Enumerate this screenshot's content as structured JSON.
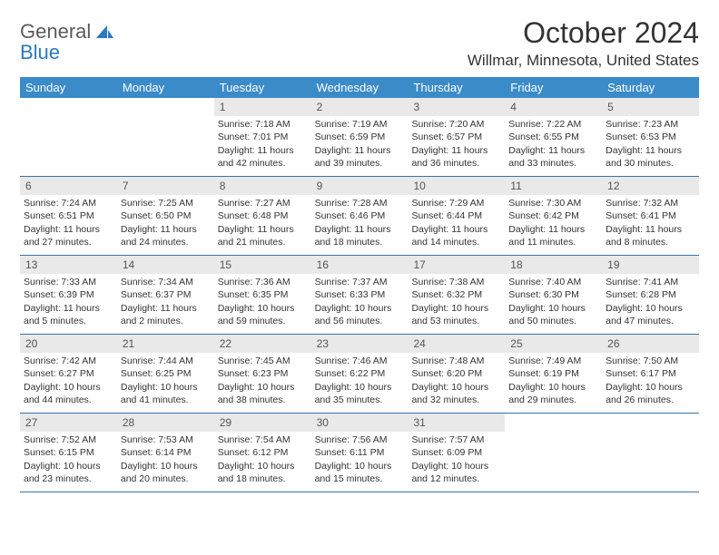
{
  "logo": {
    "line1": "General",
    "line2": "Blue"
  },
  "title": "October 2024",
  "location": "Willmar, Minnesota, United States",
  "colors": {
    "header_bg": "#3b8bc9",
    "header_text": "#ffffff",
    "daynum_bg": "#e9e9e9",
    "rule": "#3b74a8",
    "logo_gray": "#5a5a5a",
    "logo_blue": "#2a7ac0",
    "body_text": "#333333"
  },
  "dow": [
    "Sunday",
    "Monday",
    "Tuesday",
    "Wednesday",
    "Thursday",
    "Friday",
    "Saturday"
  ],
  "weeks": [
    [
      {
        "n": "",
        "lines": []
      },
      {
        "n": "",
        "lines": []
      },
      {
        "n": "1",
        "lines": [
          "Sunrise: 7:18 AM",
          "Sunset: 7:01 PM",
          "Daylight: 11 hours and 42 minutes."
        ]
      },
      {
        "n": "2",
        "lines": [
          "Sunrise: 7:19 AM",
          "Sunset: 6:59 PM",
          "Daylight: 11 hours and 39 minutes."
        ]
      },
      {
        "n": "3",
        "lines": [
          "Sunrise: 7:20 AM",
          "Sunset: 6:57 PM",
          "Daylight: 11 hours and 36 minutes."
        ]
      },
      {
        "n": "4",
        "lines": [
          "Sunrise: 7:22 AM",
          "Sunset: 6:55 PM",
          "Daylight: 11 hours and 33 minutes."
        ]
      },
      {
        "n": "5",
        "lines": [
          "Sunrise: 7:23 AM",
          "Sunset: 6:53 PM",
          "Daylight: 11 hours and 30 minutes."
        ]
      }
    ],
    [
      {
        "n": "6",
        "lines": [
          "Sunrise: 7:24 AM",
          "Sunset: 6:51 PM",
          "Daylight: 11 hours and 27 minutes."
        ]
      },
      {
        "n": "7",
        "lines": [
          "Sunrise: 7:25 AM",
          "Sunset: 6:50 PM",
          "Daylight: 11 hours and 24 minutes."
        ]
      },
      {
        "n": "8",
        "lines": [
          "Sunrise: 7:27 AM",
          "Sunset: 6:48 PM",
          "Daylight: 11 hours and 21 minutes."
        ]
      },
      {
        "n": "9",
        "lines": [
          "Sunrise: 7:28 AM",
          "Sunset: 6:46 PM",
          "Daylight: 11 hours and 18 minutes."
        ]
      },
      {
        "n": "10",
        "lines": [
          "Sunrise: 7:29 AM",
          "Sunset: 6:44 PM",
          "Daylight: 11 hours and 14 minutes."
        ]
      },
      {
        "n": "11",
        "lines": [
          "Sunrise: 7:30 AM",
          "Sunset: 6:42 PM",
          "Daylight: 11 hours and 11 minutes."
        ]
      },
      {
        "n": "12",
        "lines": [
          "Sunrise: 7:32 AM",
          "Sunset: 6:41 PM",
          "Daylight: 11 hours and 8 minutes."
        ]
      }
    ],
    [
      {
        "n": "13",
        "lines": [
          "Sunrise: 7:33 AM",
          "Sunset: 6:39 PM",
          "Daylight: 11 hours and 5 minutes."
        ]
      },
      {
        "n": "14",
        "lines": [
          "Sunrise: 7:34 AM",
          "Sunset: 6:37 PM",
          "Daylight: 11 hours and 2 minutes."
        ]
      },
      {
        "n": "15",
        "lines": [
          "Sunrise: 7:36 AM",
          "Sunset: 6:35 PM",
          "Daylight: 10 hours and 59 minutes."
        ]
      },
      {
        "n": "16",
        "lines": [
          "Sunrise: 7:37 AM",
          "Sunset: 6:33 PM",
          "Daylight: 10 hours and 56 minutes."
        ]
      },
      {
        "n": "17",
        "lines": [
          "Sunrise: 7:38 AM",
          "Sunset: 6:32 PM",
          "Daylight: 10 hours and 53 minutes."
        ]
      },
      {
        "n": "18",
        "lines": [
          "Sunrise: 7:40 AM",
          "Sunset: 6:30 PM",
          "Daylight: 10 hours and 50 minutes."
        ]
      },
      {
        "n": "19",
        "lines": [
          "Sunrise: 7:41 AM",
          "Sunset: 6:28 PM",
          "Daylight: 10 hours and 47 minutes."
        ]
      }
    ],
    [
      {
        "n": "20",
        "lines": [
          "Sunrise: 7:42 AM",
          "Sunset: 6:27 PM",
          "Daylight: 10 hours and 44 minutes."
        ]
      },
      {
        "n": "21",
        "lines": [
          "Sunrise: 7:44 AM",
          "Sunset: 6:25 PM",
          "Daylight: 10 hours and 41 minutes."
        ]
      },
      {
        "n": "22",
        "lines": [
          "Sunrise: 7:45 AM",
          "Sunset: 6:23 PM",
          "Daylight: 10 hours and 38 minutes."
        ]
      },
      {
        "n": "23",
        "lines": [
          "Sunrise: 7:46 AM",
          "Sunset: 6:22 PM",
          "Daylight: 10 hours and 35 minutes."
        ]
      },
      {
        "n": "24",
        "lines": [
          "Sunrise: 7:48 AM",
          "Sunset: 6:20 PM",
          "Daylight: 10 hours and 32 minutes."
        ]
      },
      {
        "n": "25",
        "lines": [
          "Sunrise: 7:49 AM",
          "Sunset: 6:19 PM",
          "Daylight: 10 hours and 29 minutes."
        ]
      },
      {
        "n": "26",
        "lines": [
          "Sunrise: 7:50 AM",
          "Sunset: 6:17 PM",
          "Daylight: 10 hours and 26 minutes."
        ]
      }
    ],
    [
      {
        "n": "27",
        "lines": [
          "Sunrise: 7:52 AM",
          "Sunset: 6:15 PM",
          "Daylight: 10 hours and 23 minutes."
        ]
      },
      {
        "n": "28",
        "lines": [
          "Sunrise: 7:53 AM",
          "Sunset: 6:14 PM",
          "Daylight: 10 hours and 20 minutes."
        ]
      },
      {
        "n": "29",
        "lines": [
          "Sunrise: 7:54 AM",
          "Sunset: 6:12 PM",
          "Daylight: 10 hours and 18 minutes."
        ]
      },
      {
        "n": "30",
        "lines": [
          "Sunrise: 7:56 AM",
          "Sunset: 6:11 PM",
          "Daylight: 10 hours and 15 minutes."
        ]
      },
      {
        "n": "31",
        "lines": [
          "Sunrise: 7:57 AM",
          "Sunset: 6:09 PM",
          "Daylight: 10 hours and 12 minutes."
        ]
      },
      {
        "n": "",
        "lines": []
      },
      {
        "n": "",
        "lines": []
      }
    ]
  ]
}
